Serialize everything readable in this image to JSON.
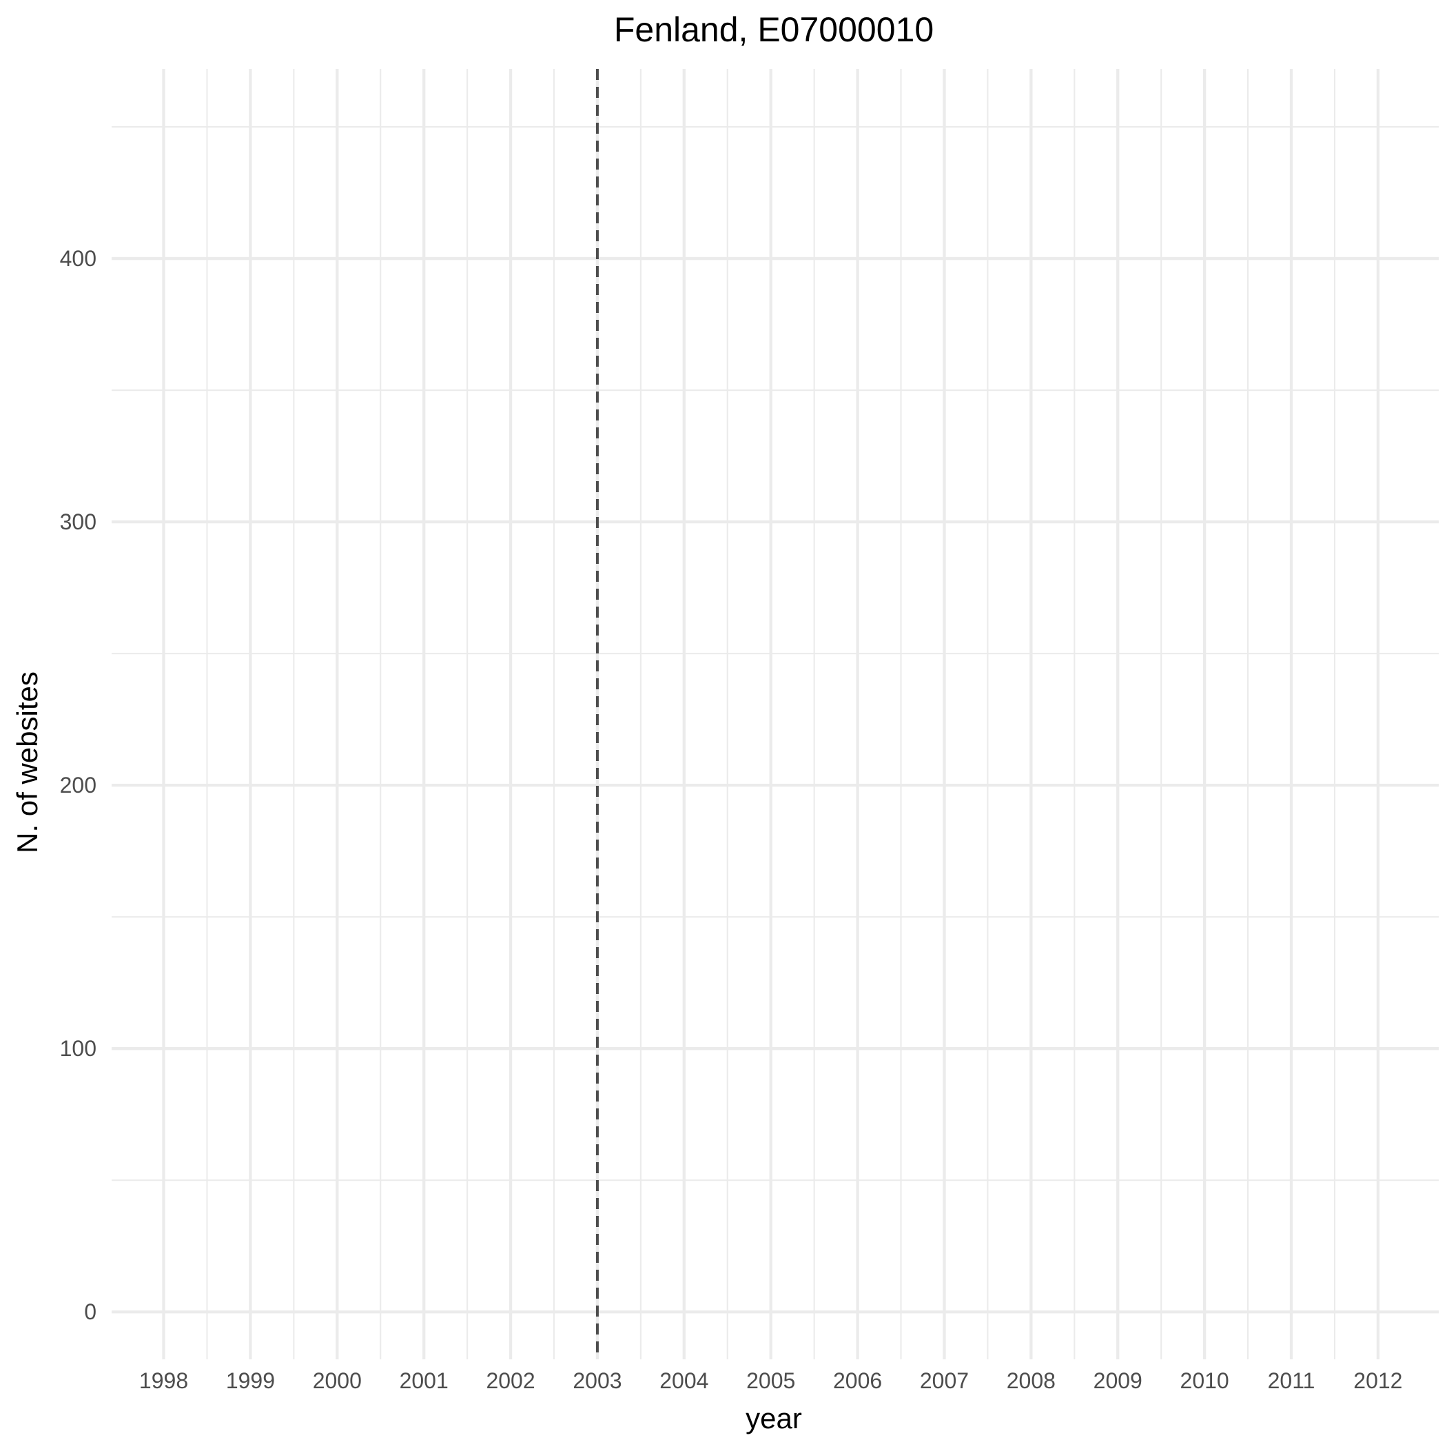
{
  "chart_data": {
    "type": "line",
    "title": "Fenland, E07000010",
    "xlabel": "year",
    "ylabel": "N. of websites",
    "x_ticks": [
      "1998",
      "1999",
      "2000",
      "2001",
      "2002",
      "2003",
      "2004",
      "2005",
      "2006",
      "2007",
      "2008",
      "2009",
      "2010",
      "2011",
      "2012"
    ],
    "y_ticks": [
      0,
      100,
      200,
      300,
      400
    ],
    "xlim": [
      1997.4,
      2012.7
    ],
    "ylim": [
      -18,
      472
    ],
    "grid": true,
    "reference_line": {
      "x": 2003,
      "style": "dashed",
      "color": "#4d4d4d"
    },
    "series": []
  }
}
